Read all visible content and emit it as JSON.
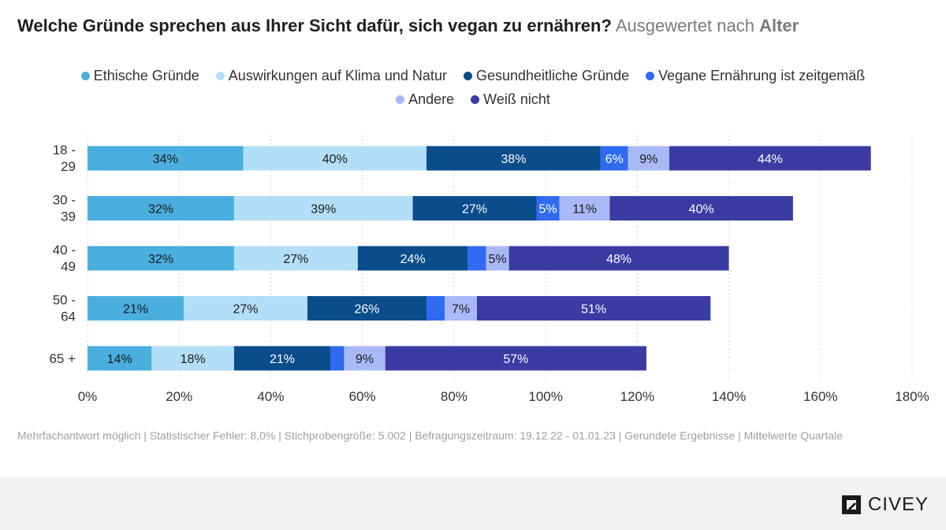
{
  "title": {
    "main": "Welche Gründe sprechen aus Ihrer Sicht dafür, sich vegan zu ernähren?",
    "sub": "Ausgewertet nach",
    "sub_bold": "Alter"
  },
  "chart_data": {
    "type": "bar",
    "orientation": "horizontal",
    "stacked": true,
    "categories": [
      "18 - 29",
      "30 - 39",
      "40 - 49",
      "50 - 64",
      "65 +"
    ],
    "series": [
      {
        "name": "Ethische Gründe",
        "color": "#4aaedf",
        "values": [
          34,
          32,
          32,
          21,
          14
        ],
        "labels": [
          "34%",
          "32%",
          "32%",
          "21%",
          "14%"
        ]
      },
      {
        "name": "Auswirkungen auf Klima und Natur",
        "color": "#b3def7",
        "values": [
          40,
          39,
          27,
          27,
          18
        ],
        "labels": [
          "40%",
          "39%",
          "27%",
          "27%",
          "18%"
        ]
      },
      {
        "name": "Gesundheitliche Gründe",
        "color": "#0b4c8c",
        "values": [
          38,
          27,
          24,
          26,
          21
        ],
        "labels": [
          "38%",
          "27%",
          "24%",
          "26%",
          "21%"
        ]
      },
      {
        "name": "Vegane Ernährung ist zeitgemäß",
        "color": "#2f6bf0",
        "values": [
          6,
          5,
          4,
          4,
          3
        ],
        "labels": [
          "6%",
          "5%",
          "",
          "",
          ""
        ]
      },
      {
        "name": "Andere",
        "color": "#a9b9f7",
        "values": [
          9,
          11,
          5,
          7,
          9
        ],
        "labels": [
          "9%",
          "11%",
          "5%",
          "7%",
          "9%"
        ]
      },
      {
        "name": "Weiß nicht",
        "color": "#3a3ba3",
        "values": [
          44,
          40,
          48,
          51,
          57
        ],
        "labels": [
          "44%",
          "40%",
          "48%",
          "51%",
          "57%"
        ]
      }
    ],
    "xlim": [
      0,
      180
    ],
    "xticks": [
      0,
      20,
      40,
      60,
      80,
      100,
      120,
      140,
      160,
      180
    ],
    "xtick_labels": [
      "0%",
      "20%",
      "40%",
      "60%",
      "80%",
      "100%",
      "120%",
      "140%",
      "160%",
      "180%"
    ],
    "grid": true,
    "legend_position": "top-center"
  },
  "footnote": "Mehrfachantwort möglich | Statistischer Fehler: 8,0% | Stichprobengröße: 5.002 | Befragungszeitraum: 19.12.22 - 01.01.23 | Gerundete Ergebnisse | Mittelwerte Quartale",
  "logo": {
    "text": "CIVEY"
  }
}
